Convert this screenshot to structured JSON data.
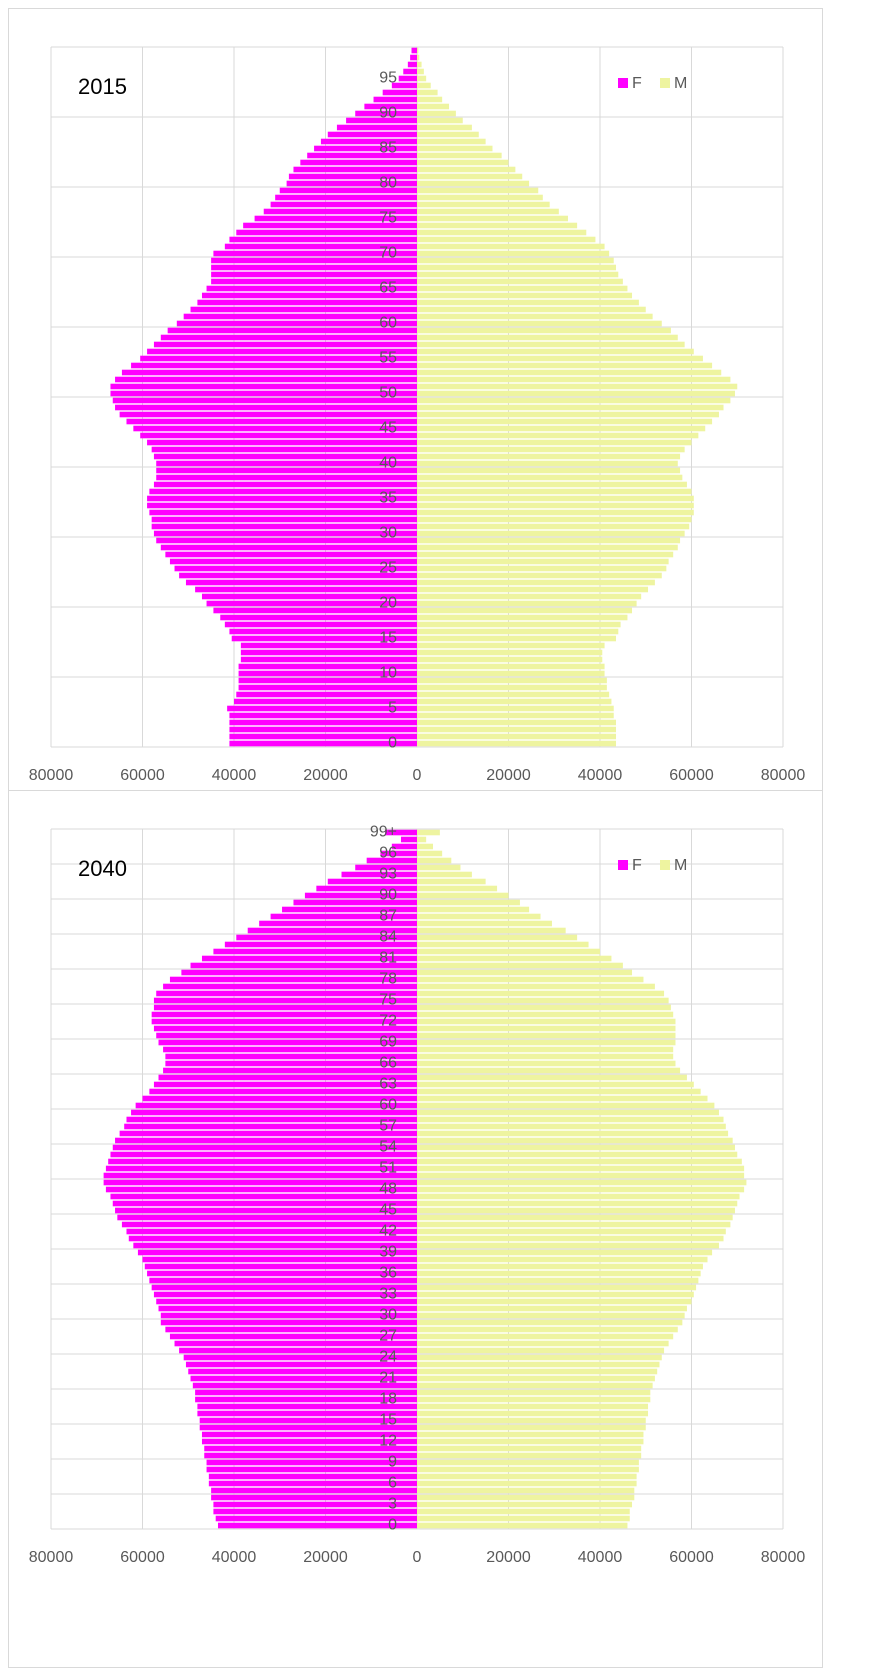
{
  "chart_data": [
    {
      "type": "bar",
      "orientation": "horizontal",
      "title": "2015",
      "legend": "top-right",
      "grid": true,
      "categories": [
        "0",
        null,
        null,
        null,
        null,
        "5",
        null,
        null,
        null,
        null,
        "10",
        null,
        null,
        null,
        null,
        "15",
        null,
        null,
        null,
        null,
        "20",
        null,
        null,
        null,
        null,
        "25",
        null,
        null,
        null,
        null,
        "30",
        null,
        null,
        null,
        null,
        "35",
        null,
        null,
        null,
        null,
        "40",
        null,
        null,
        null,
        null,
        "45",
        null,
        null,
        null,
        null,
        "50",
        null,
        null,
        null,
        null,
        "55",
        null,
        null,
        null,
        null,
        "60",
        null,
        null,
        null,
        null,
        "65",
        null,
        null,
        null,
        null,
        "70",
        null,
        null,
        null,
        null,
        "75",
        null,
        null,
        null,
        null,
        "80",
        null,
        null,
        null,
        null,
        "85",
        null,
        null,
        null,
        null,
        "90",
        null,
        null,
        null,
        null,
        "95",
        null,
        null,
        null,
        null
      ],
      "xlim": [
        -80000,
        80000
      ],
      "xticks": [
        {
          "value": -80000,
          "label": "80000"
        },
        {
          "value": -60000,
          "label": "60000"
        },
        {
          "value": -40000,
          "label": "40000"
        },
        {
          "value": -20000,
          "label": "20000"
        },
        0,
        20000,
        40000,
        60000,
        80000
      ],
      "series": [
        {
          "name": "F",
          "color": "#ff00ff",
          "values": [
            -41000,
            -41000,
            -41000,
            -41000,
            -41000,
            -41500,
            -40000,
            -39500,
            -39000,
            -39000,
            -39000,
            -39000,
            -38500,
            -38500,
            -38500,
            -40500,
            -41000,
            -42000,
            -43000,
            -44500,
            -46000,
            -47000,
            -48500,
            -50500,
            -52000,
            -53000,
            -54000,
            -55000,
            -56000,
            -57000,
            -57500,
            -58000,
            -58000,
            -58500,
            -59000,
            -59000,
            -58500,
            -57500,
            -57000,
            -57000,
            -57000,
            -57500,
            -58000,
            -59000,
            -60500,
            -62000,
            -63500,
            -65000,
            -66000,
            -66500,
            -67000,
            -67000,
            -66000,
            -64500,
            -62500,
            -60500,
            -59000,
            -57500,
            -56000,
            -54500,
            -52500,
            -51000,
            -49500,
            -48000,
            -47000,
            -46000,
            -45000,
            -45000,
            -45000,
            -45000,
            -44500,
            -42000,
            -41000,
            -39500,
            -38000,
            -35500,
            -33500,
            -32000,
            -31000,
            -30000,
            -28500,
            -28000,
            -27000,
            -25500,
            -24000,
            -22500,
            -21000,
            -19500,
            -17500,
            -15500,
            -13500,
            -11500,
            -9500,
            -7500,
            -5500,
            -4000,
            -3000,
            -2000,
            -1500,
            -1200
          ]
        },
        {
          "name": "M",
          "color": "#eef4a0",
          "values": [
            43500,
            43500,
            43500,
            43500,
            43000,
            43000,
            42500,
            42000,
            41500,
            41500,
            41000,
            41000,
            40500,
            40500,
            41000,
            43500,
            44000,
            44500,
            46000,
            47000,
            48000,
            49000,
            50500,
            52000,
            53500,
            54500,
            55000,
            56000,
            57000,
            57500,
            58500,
            59500,
            60000,
            60500,
            60500,
            60500,
            60000,
            59000,
            58000,
            57500,
            57000,
            57500,
            58500,
            60000,
            61500,
            63000,
            64500,
            66000,
            67000,
            68500,
            69500,
            70000,
            68500,
            66500,
            64500,
            62500,
            60500,
            58500,
            57000,
            55500,
            53500,
            51500,
            50000,
            48500,
            47000,
            46000,
            45000,
            44000,
            43500,
            43000,
            42000,
            41000,
            39000,
            37000,
            35000,
            33000,
            31000,
            29000,
            27500,
            26500,
            24500,
            23000,
            21500,
            20000,
            18500,
            16500,
            15000,
            13500,
            12000,
            10000,
            8500,
            7000,
            5500,
            4500,
            3000,
            2000,
            1500,
            1000,
            500,
            300
          ]
        }
      ]
    },
    {
      "type": "bar",
      "orientation": "horizontal",
      "title": "2040",
      "legend": "top-right",
      "grid": true,
      "categories": [
        "0",
        null,
        null,
        "3",
        null,
        null,
        "6",
        null,
        null,
        "9",
        null,
        null,
        "12",
        null,
        null,
        "15",
        null,
        null,
        "18",
        null,
        null,
        "21",
        null,
        null,
        "24",
        null,
        null,
        "27",
        null,
        null,
        "30",
        null,
        null,
        "33",
        null,
        null,
        "36",
        null,
        null,
        "39",
        null,
        null,
        "42",
        null,
        null,
        "45",
        null,
        null,
        "48",
        null,
        null,
        "51",
        null,
        null,
        "54",
        null,
        null,
        "57",
        null,
        null,
        "60",
        null,
        null,
        "63",
        null,
        null,
        "66",
        null,
        null,
        "69",
        null,
        null,
        "72",
        null,
        null,
        "75",
        null,
        null,
        "78",
        null,
        null,
        "81",
        null,
        null,
        "84",
        null,
        null,
        "87",
        null,
        null,
        "90",
        null,
        null,
        "93",
        null,
        null,
        "96",
        null,
        null,
        "99+"
      ],
      "xlim": [
        -80000,
        80000
      ],
      "xticks": [
        {
          "value": -80000,
          "label": "80000"
        },
        {
          "value": -60000,
          "label": "60000"
        },
        {
          "value": -40000,
          "label": "40000"
        },
        {
          "value": -20000,
          "label": "20000"
        },
        0,
        20000,
        40000,
        60000,
        80000
      ],
      "series": [
        {
          "name": "F",
          "color": "#ff00ff",
          "values": [
            -43500,
            -44000,
            -44500,
            -44500,
            -45000,
            -45000,
            -45500,
            -45500,
            -46000,
            -46000,
            -46500,
            -46500,
            -47000,
            -47000,
            -47500,
            -47500,
            -48000,
            -48000,
            -48500,
            -48500,
            -49000,
            -49500,
            -50000,
            -50500,
            -51000,
            -52000,
            -53000,
            -54000,
            -55000,
            -56000,
            -56000,
            -56500,
            -57000,
            -57500,
            -58000,
            -58500,
            -59000,
            -59500,
            -60000,
            -61000,
            -62000,
            -63000,
            -63500,
            -64500,
            -65500,
            -66000,
            -66500,
            -67000,
            -68000,
            -68500,
            -68500,
            -68000,
            -67500,
            -67000,
            -66500,
            -66000,
            -65000,
            -64000,
            -63500,
            -62500,
            -61500,
            -60000,
            -58500,
            -57500,
            -56500,
            -55500,
            -55000,
            -55000,
            -55500,
            -56500,
            -57000,
            -57500,
            -58000,
            -58000,
            -57500,
            -57500,
            -57000,
            -55500,
            -54000,
            -51500,
            -49500,
            -47000,
            -44500,
            -42000,
            -39500,
            -37000,
            -34500,
            -32000,
            -29500,
            -27000,
            -24500,
            -22000,
            -19500,
            -16500,
            -13500,
            -11000,
            -8000,
            -5500,
            -3500,
            -7000
          ]
        },
        {
          "name": "M",
          "color": "#eef4a0",
          "values": [
            46000,
            46500,
            46500,
            47000,
            47500,
            47500,
            48000,
            48000,
            48500,
            48500,
            49000,
            49000,
            49500,
            49500,
            50000,
            50000,
            50500,
            50500,
            51000,
            51000,
            51500,
            52000,
            52500,
            53000,
            53500,
            54000,
            55000,
            56000,
            57000,
            58000,
            58500,
            59000,
            60000,
            60500,
            61000,
            61500,
            62000,
            62500,
            63500,
            64500,
            66000,
            67000,
            67500,
            68500,
            69000,
            69500,
            70000,
            70500,
            71500,
            72000,
            71500,
            71500,
            71000,
            70000,
            69500,
            69000,
            68000,
            67500,
            67000,
            66000,
            65000,
            63500,
            62000,
            60500,
            59000,
            57500,
            56500,
            56000,
            56000,
            56500,
            56500,
            56500,
            56500,
            56000,
            55500,
            55000,
            54000,
            52000,
            49500,
            47000,
            45000,
            42500,
            40000,
            37500,
            35000,
            32500,
            29500,
            27000,
            24500,
            22500,
            20000,
            17500,
            15000,
            12000,
            9500,
            7500,
            5500,
            3500,
            2000,
            5000
          ]
        }
      ]
    }
  ]
}
